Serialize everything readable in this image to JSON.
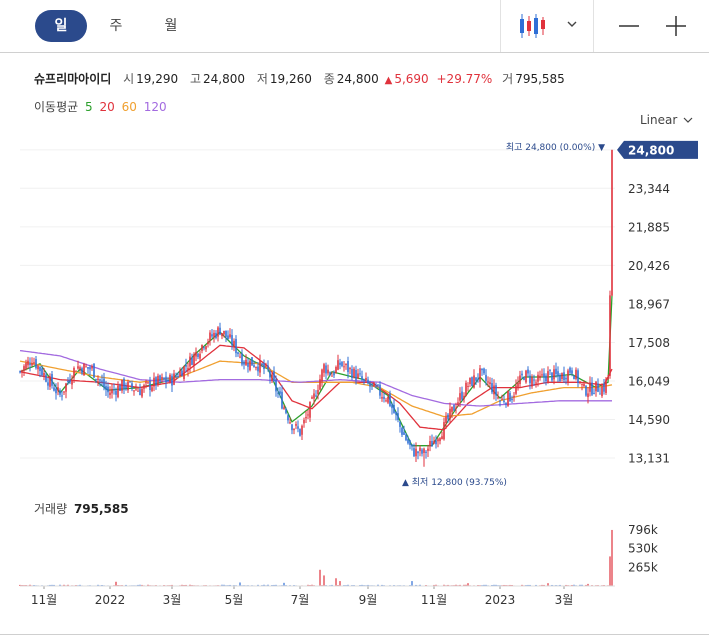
{
  "tabs": [
    "일",
    "주",
    "월"
  ],
  "active_tab": "일",
  "stock": {
    "name": "슈프리마아이디",
    "open_label": "시",
    "open": "19,290",
    "high_label": "고",
    "high": "24,800",
    "low_label": "저",
    "low": "19,260",
    "close_label": "종",
    "close": "24,800",
    "change_arrow": "▲",
    "change": "5,690",
    "change_pct": "+29.77%",
    "volume_label": "거",
    "volume": "795,585"
  },
  "ma": {
    "label": "이동평균",
    "periods": [
      "5",
      "20",
      "60",
      "120"
    ],
    "colors": [
      "#2ca02c",
      "#e0323c",
      "#f0a030",
      "#a36be0"
    ]
  },
  "scale": {
    "label": "Linear",
    "icon": "chevron-down-icon"
  },
  "colors": {
    "up": "#e0323c",
    "down": "#2f6fd6",
    "accent": "#2b4a8c"
  },
  "chart_data": [
    {
      "type": "candlestick",
      "title": "",
      "ylim": [
        12300,
        25400
      ],
      "y_ticks": [
        "24,800",
        "23,344",
        "21,885",
        "20,426",
        "18,967",
        "17,508",
        "16,049",
        "14,590",
        "13,131"
      ],
      "x_ticks": [
        "11월",
        "2022",
        "3월",
        "5월",
        "7월",
        "9월",
        "11월",
        "2023",
        "3월"
      ],
      "current_price": "24,800",
      "high_annotation": {
        "label": "최고",
        "value": "24,800",
        "pct": "(0.00%)",
        "arrow": "▼"
      },
      "low_annotation": {
        "label": "최저",
        "value": "12,800",
        "pct": "(93.75%)",
        "arrow": "▲"
      },
      "price_keypoints": [
        [
          0,
          16400
        ],
        [
          6,
          16900
        ],
        [
          12,
          16300
        ],
        [
          20,
          15500
        ],
        [
          28,
          16600
        ],
        [
          36,
          16500
        ],
        [
          44,
          15600
        ],
        [
          52,
          15900
        ],
        [
          60,
          15700
        ],
        [
          68,
          16000
        ],
        [
          76,
          16100
        ],
        [
          84,
          16700
        ],
        [
          92,
          17500
        ],
        [
          100,
          18000
        ],
        [
          106,
          17500
        ],
        [
          112,
          16800
        ],
        [
          118,
          16700
        ],
        [
          124,
          16400
        ],
        [
          130,
          15400
        ],
        [
          136,
          14400
        ],
        [
          140,
          14100
        ],
        [
          146,
          15200
        ],
        [
          152,
          16600
        ],
        [
          156,
          16300
        ],
        [
          160,
          16700
        ],
        [
          166,
          16400
        ],
        [
          172,
          16000
        ],
        [
          178,
          15700
        ],
        [
          184,
          15400
        ],
        [
          190,
          14300
        ],
        [
          196,
          13400
        ],
        [
          202,
          13300
        ],
        [
          206,
          13700
        ],
        [
          212,
          14300
        ],
        [
          218,
          15200
        ],
        [
          224,
          15900
        ],
        [
          230,
          16300
        ],
        [
          236,
          15800
        ],
        [
          240,
          15300
        ],
        [
          246,
          15500
        ],
        [
          252,
          16300
        ],
        [
          258,
          16000
        ],
        [
          264,
          16300
        ],
        [
          270,
          16200
        ],
        [
          276,
          16500
        ],
        [
          282,
          15700
        ],
        [
          288,
          15800
        ],
        [
          292,
          15800
        ],
        [
          294,
          16200
        ],
        [
          295,
          19290
        ],
        [
          296,
          24800
        ]
      ],
      "ma_keypoints": {
        "5": [
          [
            0,
            16400
          ],
          [
            10,
            16700
          ],
          [
            20,
            15600
          ],
          [
            30,
            16500
          ],
          [
            44,
            15700
          ],
          [
            60,
            15800
          ],
          [
            76,
            16100
          ],
          [
            88,
            17100
          ],
          [
            100,
            17900
          ],
          [
            112,
            17000
          ],
          [
            124,
            16500
          ],
          [
            136,
            14500
          ],
          [
            146,
            15100
          ],
          [
            156,
            16400
          ],
          [
            172,
            16100
          ],
          [
            184,
            15500
          ],
          [
            196,
            13600
          ],
          [
            206,
            13600
          ],
          [
            218,
            15000
          ],
          [
            230,
            16200
          ],
          [
            240,
            15400
          ],
          [
            252,
            16200
          ],
          [
            264,
            16200
          ],
          [
            276,
            16300
          ],
          [
            288,
            15800
          ],
          [
            294,
            16000
          ],
          [
            296,
            19300
          ]
        ],
        "20": [
          [
            0,
            16400
          ],
          [
            20,
            16100
          ],
          [
            40,
            16000
          ],
          [
            60,
            15800
          ],
          [
            76,
            16000
          ],
          [
            90,
            16800
          ],
          [
            100,
            17400
          ],
          [
            112,
            17300
          ],
          [
            124,
            16600
          ],
          [
            136,
            15300
          ],
          [
            146,
            15000
          ],
          [
            160,
            16000
          ],
          [
            176,
            16000
          ],
          [
            190,
            15200
          ],
          [
            200,
            14300
          ],
          [
            212,
            14200
          ],
          [
            224,
            15200
          ],
          [
            236,
            15800
          ],
          [
            250,
            15800
          ],
          [
            264,
            16000
          ],
          [
            280,
            16000
          ],
          [
            292,
            15900
          ],
          [
            296,
            16500
          ]
        ],
        "60": [
          [
            0,
            16800
          ],
          [
            20,
            16500
          ],
          [
            40,
            16200
          ],
          [
            60,
            16000
          ],
          [
            80,
            16200
          ],
          [
            100,
            16800
          ],
          [
            120,
            16700
          ],
          [
            136,
            16000
          ],
          [
            150,
            16000
          ],
          [
            166,
            16000
          ],
          [
            180,
            15800
          ],
          [
            196,
            15100
          ],
          [
            212,
            14700
          ],
          [
            226,
            14800
          ],
          [
            240,
            15300
          ],
          [
            256,
            15600
          ],
          [
            272,
            15800
          ],
          [
            288,
            15800
          ],
          [
            296,
            15900
          ]
        ],
        "120": [
          [
            0,
            17200
          ],
          [
            20,
            17000
          ],
          [
            40,
            16500
          ],
          [
            60,
            16100
          ],
          [
            80,
            16000
          ],
          [
            100,
            16100
          ],
          [
            120,
            16100
          ],
          [
            140,
            16000
          ],
          [
            160,
            16100
          ],
          [
            180,
            16000
          ],
          [
            196,
            15500
          ],
          [
            212,
            15200
          ],
          [
            230,
            15100
          ],
          [
            250,
            15200
          ],
          [
            270,
            15300
          ],
          [
            296,
            15300
          ]
        ]
      }
    },
    {
      "type": "bar",
      "title": "거래량",
      "current_volume": "795,585",
      "y_ticks": [
        "796k",
        "530k",
        "265k"
      ],
      "ylim": [
        0,
        880000
      ],
      "spikes": [
        [
          48,
          60000
        ],
        [
          110,
          50000
        ],
        [
          132,
          45000
        ],
        [
          150,
          230000
        ],
        [
          152,
          150000
        ],
        [
          158,
          110000
        ],
        [
          160,
          70000
        ],
        [
          196,
          70000
        ],
        [
          224,
          40000
        ],
        [
          264,
          40000
        ],
        [
          284,
          30000
        ],
        [
          295,
          420000
        ],
        [
          296,
          795585
        ]
      ]
    }
  ]
}
